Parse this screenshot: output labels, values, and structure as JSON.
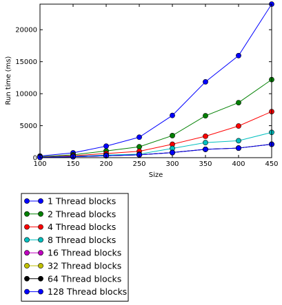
{
  "chart_data": {
    "type": "line",
    "xlabel": "Size",
    "ylabel": "Run time (ms)",
    "xlim": [
      100,
      450
    ],
    "ylim": [
      0,
      24000
    ],
    "x_ticks": [
      100,
      150,
      200,
      250,
      300,
      350,
      400,
      450
    ],
    "y_ticks": [
      0,
      5000,
      10000,
      15000,
      20000
    ],
    "x": [
      100,
      150,
      200,
      250,
      300,
      350,
      400,
      450
    ],
    "grid": false,
    "legend_placement": "below",
    "series": [
      {
        "name": "1 Thread blocks",
        "color": "#0000ff",
        "values": [
          250,
          750,
          1800,
          3200,
          6600,
          11850,
          15950,
          24000
        ]
      },
      {
        "name": "2 Thread blocks",
        "color": "#008000",
        "values": [
          150,
          450,
          1050,
          1700,
          3450,
          6550,
          8600,
          12200
        ]
      },
      {
        "name": "4 Thread blocks",
        "color": "#ff0000",
        "values": [
          100,
          300,
          650,
          1000,
          2100,
          3350,
          4950,
          7200
        ]
      },
      {
        "name": "8 Thread blocks",
        "color": "#00bfbf",
        "values": [
          80,
          200,
          400,
          550,
          1450,
          2350,
          2650,
          3950
        ]
      },
      {
        "name": "16 Thread blocks",
        "color": "#bf00bf",
        "values": [
          60,
          150,
          300,
          450,
          800,
          1300,
          1500,
          2100
        ]
      },
      {
        "name": "32 Thread blocks",
        "color": "#bfbf00",
        "values": [
          60,
          150,
          300,
          450,
          800,
          1300,
          1500,
          2100
        ]
      },
      {
        "name": "64 Thread blocks",
        "color": "#000000",
        "values": [
          60,
          150,
          300,
          450,
          800,
          1300,
          1500,
          2100
        ]
      },
      {
        "name": "128 Thread blocks",
        "color": "#0000ff",
        "values": [
          60,
          150,
          300,
          450,
          800,
          1300,
          1500,
          2100
        ]
      }
    ]
  }
}
